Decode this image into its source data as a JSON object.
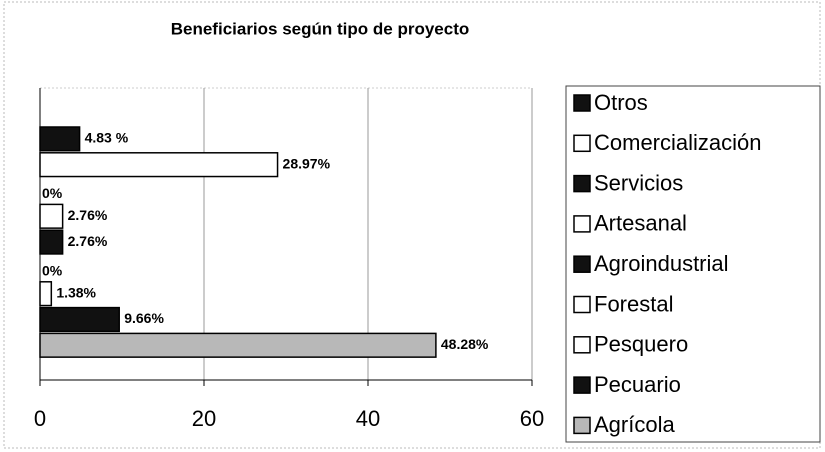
{
  "chart_data": {
    "type": "hbar",
    "title": "Beneficiarios según tipo de proyecto",
    "categories": [
      "Otros",
      "Comercialización",
      "Servicios",
      "Artesanal",
      "Agroindustrial",
      "Forestal",
      "Pesquero",
      "Pecuario",
      "Agrícola"
    ],
    "values": [
      4.83,
      28.97,
      0,
      2.76,
      2.76,
      0,
      1.38,
      9.66,
      48.28
    ],
    "value_labels": [
      "4.83 %",
      "28.97%",
      "0%",
      "2.76%",
      "2.76%",
      "0%",
      "1.38%",
      "9.66%",
      "48.28%"
    ],
    "colors": [
      "#111111",
      "#ffffff",
      "#111111",
      "#ffffff",
      "#111111",
      "#ffffff",
      "#ffffff",
      "#111111",
      "#b8b8b8"
    ],
    "xlim": [
      0,
      60
    ],
    "xticks": [
      0,
      20,
      40,
      60
    ],
    "grid": true,
    "legend": "right"
  }
}
